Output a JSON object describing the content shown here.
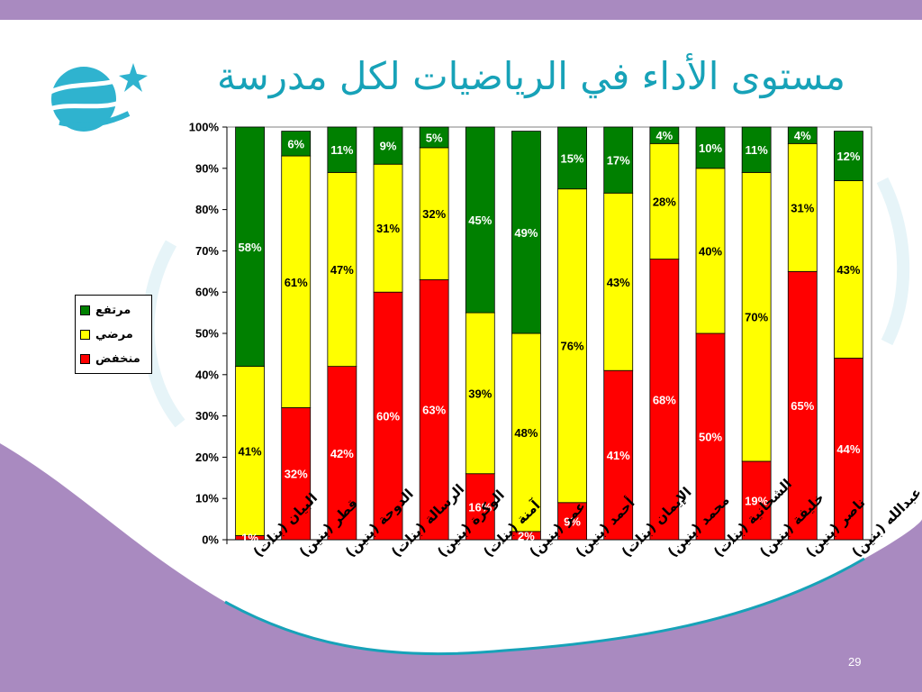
{
  "slide": {
    "title": "مستوى الأداء في الرياضيات لكل مدرسة",
    "page_number": "29"
  },
  "legend": {
    "items": [
      {
        "label": "مرتفع",
        "color": "#008000"
      },
      {
        "label": "مرضي",
        "color": "#ffff00"
      },
      {
        "label": "منخفض",
        "color": "#ff0000"
      }
    ]
  },
  "colors": {
    "accent": "#17a2b8",
    "band": "#a98ac0",
    "high": "#008000",
    "mid": "#ffff00",
    "low": "#ff0000"
  },
  "chart_data": {
    "type": "bar",
    "stacked": true,
    "title": "",
    "xlabel": "",
    "ylabel": "",
    "ylim": [
      0,
      100
    ],
    "y_ticks": [
      "0%",
      "10%",
      "20%",
      "30%",
      "40%",
      "50%",
      "60%",
      "70%",
      "80%",
      "90%",
      "100%"
    ],
    "categories": [
      "البيان (بنات)",
      "قطر (بنين)",
      "الدوحة (بنين)",
      "الرسالة (بنات)",
      "الوكرة (بنين)",
      "آمنة (بنات)",
      "عمر (بنين)",
      "أحمد (بنين)",
      "الإيمان (بنات)",
      "محمد (بنين)",
      "الشحانية (بنات)",
      "خليفة (بنين)",
      "ناصر (بنين)",
      "عبدالله (بنين)"
    ],
    "series": [
      {
        "name": "منخفض",
        "color": "#ff0000",
        "values": [
          1,
          32,
          42,
          60,
          63,
          16,
          2,
          9,
          41,
          68,
          50,
          19,
          65,
          44
        ],
        "labels": [
          "1%",
          "32%",
          "42%",
          "60%",
          "63%",
          "16%",
          "2%",
          "9%",
          "41%",
          "68%",
          "50%",
          "19%",
          "65%",
          "44%"
        ]
      },
      {
        "name": "مرضي",
        "color": "#ffff00",
        "values": [
          41,
          61,
          47,
          31,
          32,
          39,
          48,
          76,
          43,
          28,
          40,
          70,
          31,
          43
        ],
        "labels": [
          "41%",
          "61%",
          "47%",
          "31%",
          "32%",
          "39%",
          "48%",
          "76%",
          "43%",
          "28%",
          "40%",
          "70%",
          "31%",
          "43%"
        ]
      },
      {
        "name": "مرتفع",
        "color": "#008000",
        "values": [
          58,
          6,
          11,
          9,
          5,
          45,
          49,
          15,
          17,
          4,
          10,
          11,
          4,
          12
        ],
        "labels": [
          "58%",
          "6%",
          "11%",
          "9%",
          "5%",
          "45%",
          "49%",
          "15%",
          "17%",
          "4%",
          "10%",
          "11%",
          "4%",
          "12%"
        ]
      }
    ]
  }
}
